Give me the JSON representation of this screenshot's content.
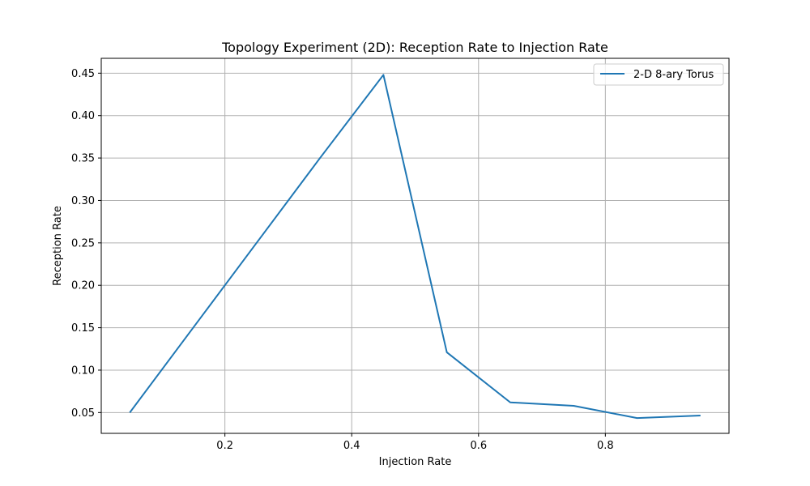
{
  "chart_data": {
    "type": "line",
    "title": "Topology Experiment (2D): Reception Rate to Injection Rate",
    "xlabel": "Injection Rate",
    "ylabel": "Reception Rate",
    "xlim": [
      0.005,
      0.995
    ],
    "ylim": [
      0.0255,
      0.4675
    ],
    "xticks": [
      0.2,
      0.4,
      0.6,
      0.8
    ],
    "xtick_labels": [
      "0.2",
      "0.4",
      "0.6",
      "0.8"
    ],
    "yticks": [
      0.05,
      0.1,
      0.15,
      0.2,
      0.25,
      0.3,
      0.35,
      0.4,
      0.45
    ],
    "ytick_labels": [
      "0.05",
      "0.10",
      "0.15",
      "0.20",
      "0.25",
      "0.30",
      "0.35",
      "0.40",
      "0.45"
    ],
    "grid": true,
    "legend_position": "top-right",
    "series": [
      {
        "name": "2-D 8-ary Torus",
        "color": "#1f77b4",
        "x": [
          0.05,
          0.15,
          0.25,
          0.35,
          0.45,
          0.55,
          0.65,
          0.75,
          0.85,
          0.95
        ],
        "y": [
          0.05,
          0.15,
          0.25,
          0.35,
          0.448,
          0.121,
          0.062,
          0.058,
          0.0435,
          0.0465
        ]
      }
    ]
  }
}
